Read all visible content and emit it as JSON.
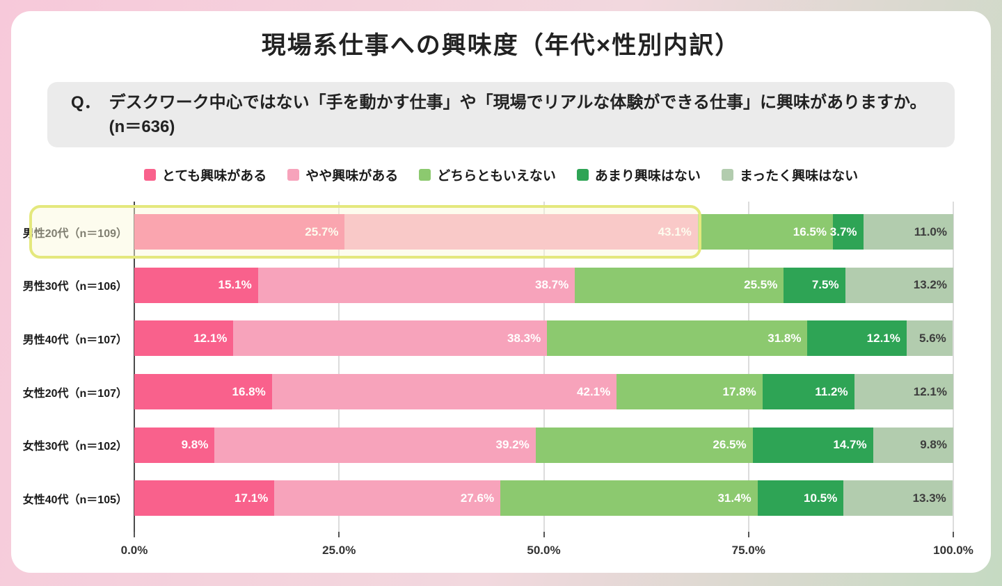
{
  "title": "現場系仕事への興味度（年代×性別内訳）",
  "question": {
    "prefix": "Q．",
    "text": "デスクワーク中心ではない「手を動かす仕事」や「現場でリアルな体験ができる仕事」に興味がありますか。(n＝636)"
  },
  "chart_data": {
    "type": "bar",
    "orientation": "horizontal",
    "stacked": true,
    "xlim": [
      0,
      100
    ],
    "x_ticks": [
      "0.0%",
      "25.0%",
      "50.0%",
      "75.0%",
      "100.0%"
    ],
    "grid": true,
    "legend_position": "top",
    "series_names": [
      "とても興味がある",
      "やや興味がある",
      "どちらともいえない",
      "あまり興味はない",
      "まったく興味はない"
    ],
    "series_colors": [
      "#F9618C",
      "#F7A3BB",
      "#8CC96F",
      "#2EA455",
      "#B2CCAE"
    ],
    "rows": [
      {
        "label": "男性20代（n＝109）",
        "values": [
          25.7,
          43.1,
          16.5,
          3.7,
          11.0
        ]
      },
      {
        "label": "男性30代（n＝106）",
        "values": [
          15.1,
          38.7,
          25.5,
          7.5,
          13.2
        ]
      },
      {
        "label": "男性40代（n＝107）",
        "values": [
          12.1,
          38.3,
          31.8,
          12.1,
          5.6
        ]
      },
      {
        "label": "女性20代（n＝107）",
        "values": [
          16.8,
          42.1,
          17.8,
          11.2,
          12.1
        ]
      },
      {
        "label": "女性30代（n＝102）",
        "values": [
          9.8,
          39.2,
          26.5,
          14.7,
          9.8
        ]
      },
      {
        "label": "女性40代（n＝105）",
        "values": [
          17.1,
          27.6,
          31.4,
          10.5,
          13.3
        ]
      }
    ],
    "highlight": {
      "row_label": "男性20代（n＝109）",
      "covers_percent": 68.8,
      "border_color": "#E4E87D",
      "fill_color": "#FAF8DA"
    }
  },
  "colors": {
    "frame_gradient_start": "#F7C9DA",
    "frame_gradient_end": "#C5DAC2",
    "card_background": "#FFFFFF",
    "question_box_background": "#EBEBEB",
    "gridline": "#DCDCDC",
    "axis": "#4A4A4A"
  }
}
